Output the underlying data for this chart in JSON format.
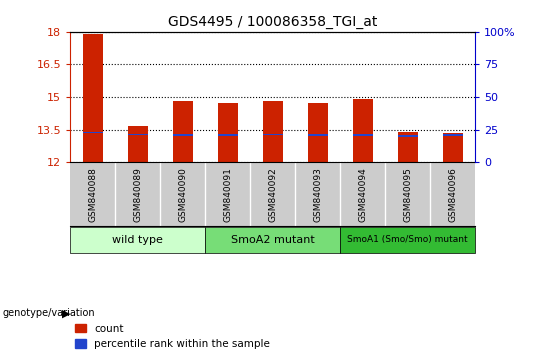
{
  "title": "GDS4495 / 100086358_TGI_at",
  "samples": [
    "GSM840088",
    "GSM840089",
    "GSM840090",
    "GSM840091",
    "GSM840092",
    "GSM840093",
    "GSM840094",
    "GSM840095",
    "GSM840096"
  ],
  "count_values": [
    17.9,
    13.65,
    14.82,
    14.72,
    14.8,
    14.73,
    14.92,
    13.37,
    13.33
  ],
  "count_base": 12,
  "percentile_values": [
    13.37,
    13.28,
    13.265,
    13.265,
    13.27,
    13.265,
    13.265,
    13.21,
    13.245
  ],
  "ylim": [
    12,
    18
  ],
  "yticks": [
    12,
    13.5,
    15,
    16.5,
    18
  ],
  "ytick_labels": [
    "12",
    "13.5",
    "15",
    "16.5",
    "18"
  ],
  "right_ytick_pct": [
    0,
    25,
    50,
    75,
    100
  ],
  "right_ytick_labels": [
    "0",
    "25",
    "50",
    "75",
    "100%"
  ],
  "bar_color": "#cc2200",
  "percentile_color": "#2244cc",
  "groups": [
    {
      "label": "wild type",
      "start": 0,
      "end": 3,
      "color": "#ccffcc"
    },
    {
      "label": "SmoA2 mutant",
      "start": 3,
      "end": 6,
      "color": "#77dd77"
    },
    {
      "label": "SmoA1 (Smo/Smo) mutant",
      "start": 6,
      "end": 9,
      "color": "#33bb33"
    }
  ],
  "group_row_label": "genotype/variation",
  "legend_count_label": "count",
  "legend_percentile_label": "percentile rank within the sample",
  "bar_width": 0.45,
  "left_tick_color": "#cc2200",
  "right_tick_color": "#0000cc",
  "sample_bg_color": "#cccccc",
  "fig_bg": "#ffffff"
}
